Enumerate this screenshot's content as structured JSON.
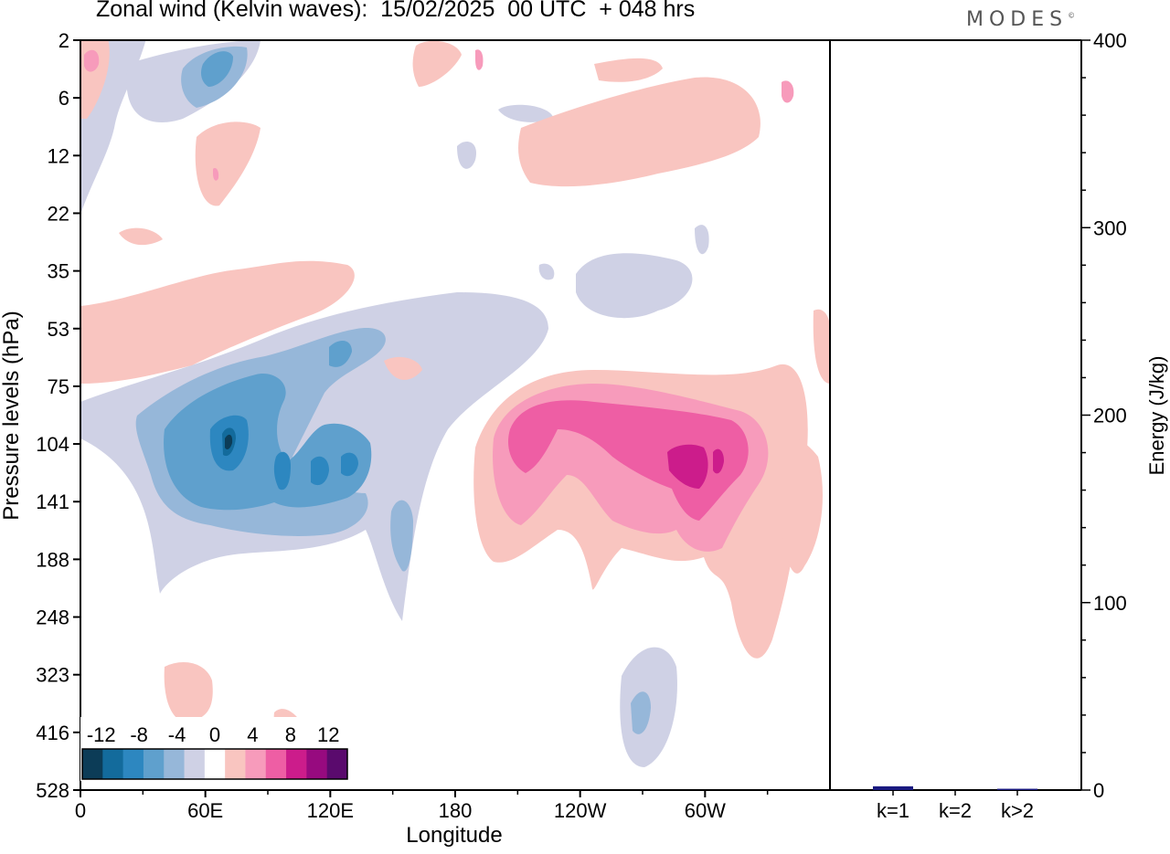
{
  "title": "Zonal wind (Kelvin waves):  15/02/2025  00 UTC  + 048 hrs",
  "brand": "MODES",
  "brand_mark": "©",
  "chart_data": [
    {
      "type": "heatmap",
      "xlabel": "Longitude",
      "ylabel": "Pressure levels (hPa)",
      "x_ticks": [
        "0",
        "60E",
        "120E",
        "180",
        "120W",
        "60W"
      ],
      "x_tick_lon": [
        0,
        60,
        120,
        180,
        240,
        300
      ],
      "xlim": [
        0,
        360
      ],
      "y_ticks": [
        "2",
        "6",
        "12",
        "22",
        "35",
        "53",
        "75",
        "104",
        "141",
        "188",
        "248",
        "323",
        "416",
        "528"
      ],
      "colorbar": {
        "tick_labels": [
          "-12",
          "-8",
          "-4",
          "0",
          "4",
          "8",
          "12"
        ],
        "levels": [
          -14,
          -12,
          -10,
          -8,
          -6,
          -4,
          -2,
          2,
          4,
          6,
          8,
          10,
          12,
          14
        ],
        "colors": [
          "#0c3c57",
          "#136b9c",
          "#2d87c0",
          "#5fa0cd",
          "#96b7d9",
          "#cfd1e5",
          "#ffffff",
          "#f9c5c0",
          "#f79bbb",
          "#ee5ea4",
          "#cc1c8b",
          "#970a7f",
          "#5a0a6d"
        ]
      },
      "features": [
        {
          "lon": 65,
          "lev": 4,
          "value": -7
        },
        {
          "lon": 25,
          "lev": 5,
          "value": -2
        },
        {
          "lon": 10,
          "lev": 6,
          "value": 4
        },
        {
          "lon": 65,
          "lev": 14,
          "value": 2
        },
        {
          "lon": 220,
          "lev": 4,
          "value": 2
        },
        {
          "lon": 265,
          "lev": 8,
          "value": 2
        },
        {
          "lon": 40,
          "lev": 50,
          "value": 2
        },
        {
          "lon": 130,
          "lev": 35,
          "value": -2
        },
        {
          "lon": 70,
          "lev": 112,
          "value": -13
        },
        {
          "lon": 100,
          "lev": 120,
          "value": -11
        },
        {
          "lon": 115,
          "lev": 115,
          "value": -11
        },
        {
          "lon": 125,
          "lev": 115,
          "value": -11
        },
        {
          "lon": 230,
          "lev": 105,
          "value": 9
        },
        {
          "lon": 300,
          "lev": 112,
          "value": 11
        },
        {
          "lon": 310,
          "lev": 130,
          "value": 4
        },
        {
          "lon": 350,
          "lev": 200,
          "value": 2
        },
        {
          "lon": 275,
          "lev": 390,
          "value": -5
        },
        {
          "lon": 50,
          "lev": 380,
          "value": 2
        }
      ]
    },
    {
      "type": "bar",
      "categories": [
        "k=1",
        "k=2",
        "k>2"
      ],
      "values": [
        2,
        0,
        0.7
      ],
      "ylabel": "Energy (J/kg)",
      "ylim": [
        0,
        400
      ],
      "y_ticks": [
        0,
        100,
        200,
        300,
        400
      ],
      "bar_color": "#1a1a80"
    }
  ]
}
